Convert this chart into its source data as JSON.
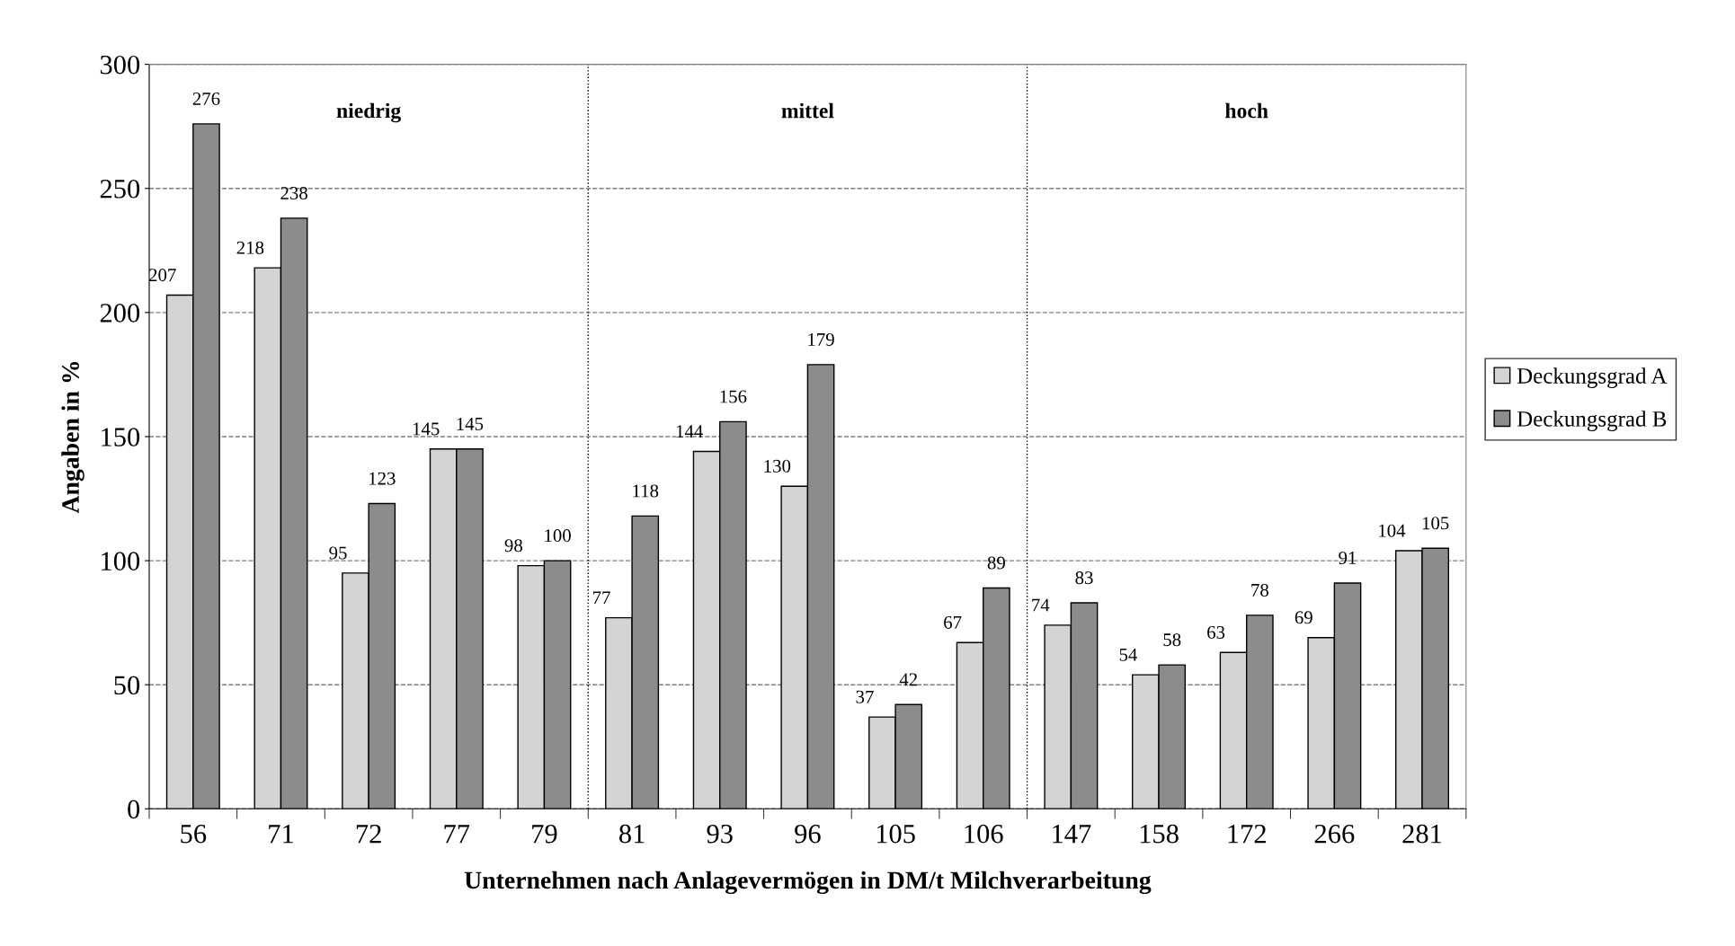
{
  "chart_data": {
    "type": "bar",
    "xlabel": "Unternehmen nach Anlagevermögen in DM/t Milchverarbeitung",
    "ylabel": "Angaben in %",
    "categories": [
      "56",
      "71",
      "72",
      "77",
      "79",
      "81",
      "93",
      "96",
      "105",
      "106",
      "147",
      "158",
      "172",
      "266",
      "281"
    ],
    "series": [
      {
        "name": "Deckungsgrad A",
        "color": "#d4d4d4",
        "values": [
          207,
          218,
          95,
          145,
          98,
          77,
          144,
          130,
          37,
          67,
          74,
          54,
          63,
          69,
          104
        ]
      },
      {
        "name": "Deckungsgrad B",
        "color": "#8c8c8c",
        "values": [
          276,
          238,
          123,
          145,
          100,
          118,
          156,
          179,
          42,
          89,
          83,
          58,
          78,
          91,
          105
        ]
      }
    ],
    "ylim": [
      0,
      300
    ],
    "yticks": [
      0,
      50,
      100,
      150,
      200,
      250,
      300
    ],
    "grid": "y",
    "legend": "right",
    "data_labels": true,
    "annotations": [
      "niedrig",
      "mittel",
      "hoch"
    ]
  }
}
